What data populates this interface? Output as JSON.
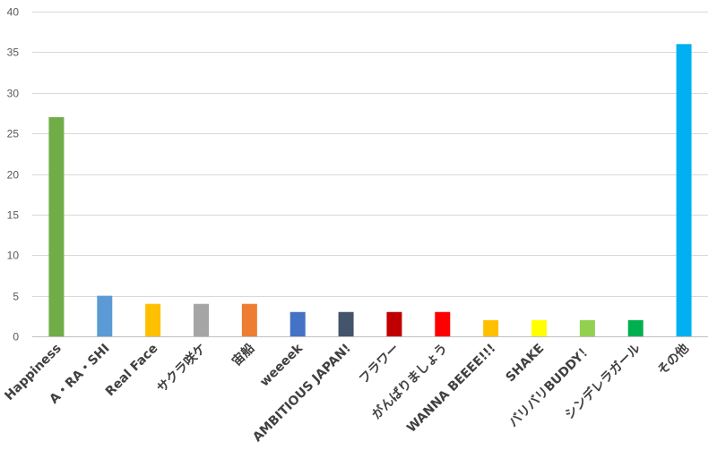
{
  "chart_data": {
    "type": "bar",
    "title": "",
    "xlabel": "",
    "ylabel": "",
    "ylim": [
      0,
      40
    ],
    "y_ticks": [
      "0",
      "5",
      "10",
      "15",
      "20",
      "25",
      "30",
      "35",
      "40"
    ],
    "grid": true,
    "legend": "none",
    "categories": [
      "Happiness",
      "A・RA・SHI",
      "Real Face",
      "サクラ咲ケ",
      "宙船",
      "weeeek",
      "AMBITIOUS JAPAN!",
      "フラワー",
      "がんばりましょう",
      "WANNA BEEEE!!!",
      "SHAKE",
      "バリバリBUDDY！",
      "シンデレラガール",
      "その他"
    ],
    "values": [
      27,
      5,
      4,
      4,
      4,
      3,
      3,
      3,
      3,
      2,
      2,
      2,
      2,
      36
    ],
    "colors": [
      "#70AD47",
      "#5B9BD5",
      "#FFC000",
      "#A5A5A5",
      "#ED7D31",
      "#4472C4",
      "#44546A",
      "#C00000",
      "#FF0000",
      "#FFC000",
      "#FFFF00",
      "#92D050",
      "#00B050",
      "#00B0F0"
    ]
  }
}
